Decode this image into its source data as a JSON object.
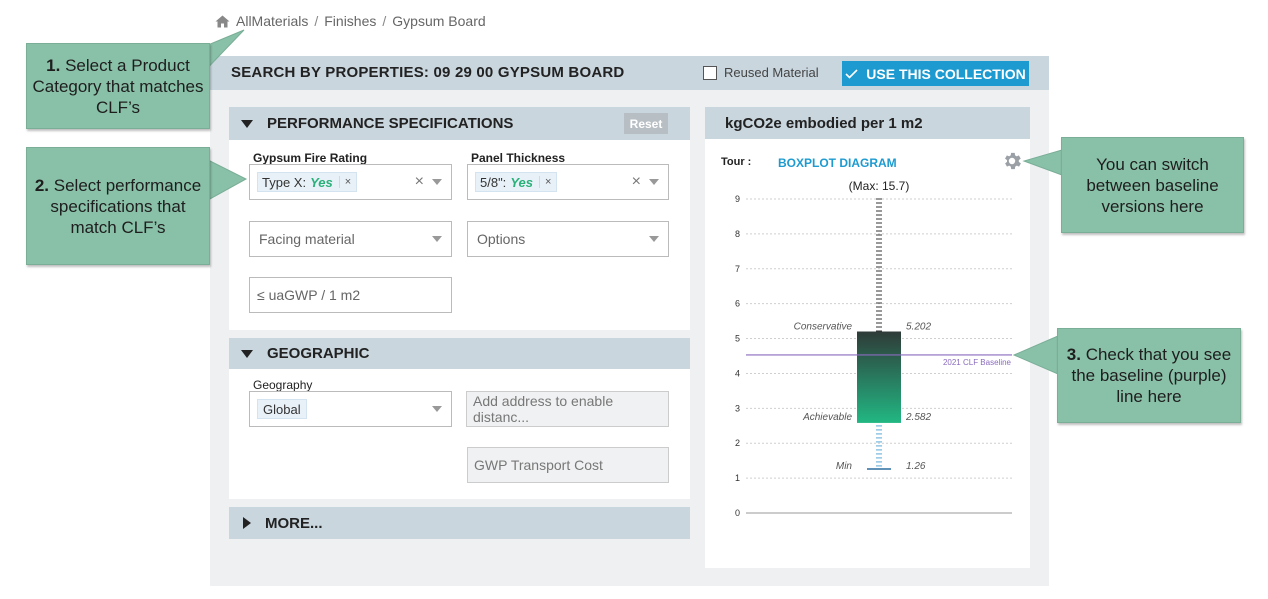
{
  "breadcrumb": {
    "items": [
      "AllMaterials",
      "Finishes",
      "Gypsum Board"
    ],
    "separator": "/"
  },
  "search": {
    "title": "SEARCH BY PROPERTIES: 09 29 00 GYPSUM BOARD",
    "reused_label": "Reused Material",
    "use_button": "USE THIS COLLECTION"
  },
  "performance": {
    "header": "PERFORMANCE SPECIFICATIONS",
    "reset": "Reset",
    "fire_rating": {
      "label": "Gypsum Fire Rating",
      "tag_name": "Type X:",
      "tag_value": "Yes",
      "remove": "×",
      "clear": "×"
    },
    "panel_thickness": {
      "label": "Panel Thickness",
      "tag_name": "5/8\":",
      "tag_value": "Yes",
      "remove": "×",
      "clear": "×"
    },
    "facing_placeholder": "Facing material",
    "options_placeholder": "Options",
    "gwp_placeholder": "≤ uaGWP / 1 m2"
  },
  "geographic": {
    "header": "GEOGRAPHIC",
    "geography_label": "Geography",
    "geography_value": "Global",
    "address_placeholder": "Add address to enable distanc...",
    "transport_placeholder": "GWP Transport Cost"
  },
  "more": {
    "header": "MORE..."
  },
  "chart_panel": {
    "title": "kgCO2e embodied per 1 m2",
    "tour_label": "Tour :",
    "tour_link": "BOXPLOT DIAGRAM",
    "settings_icon": "gear-icon"
  },
  "chart_data": {
    "type": "boxplot",
    "ylim": [
      0,
      9
    ],
    "yticks": [
      0,
      1,
      2,
      3,
      4,
      5,
      6,
      7,
      8,
      9
    ],
    "max_label": "(Max: 15.7)",
    "max": 15.7,
    "conservative": {
      "label": "Conservative",
      "value": 5.202,
      "value_label": "5.202"
    },
    "achievable": {
      "label": "Achievable",
      "value": 2.582,
      "value_label": "2.582"
    },
    "min": {
      "label": "Min",
      "value": 1.26,
      "value_label": "1.26"
    },
    "baseline": {
      "label": "2021 CLF Baseline",
      "value": 4.53,
      "color": "#8a6bbf"
    },
    "box_color_top": "#2f3b38",
    "box_color_bottom": "#22b783"
  },
  "annotations": {
    "note1": {
      "num": "1.",
      "text": "Select a Product Category that matches CLF’s"
    },
    "note2": {
      "num": "2.",
      "text": "Select performance specifications that match CLF’s"
    },
    "note_switch": {
      "text": "You can switch between baseline versions here"
    },
    "note3": {
      "num": "3.",
      "text": "Check that you see the baseline (purple) line here"
    }
  },
  "icons": {
    "home": "home-icon",
    "check": "check-icon"
  }
}
